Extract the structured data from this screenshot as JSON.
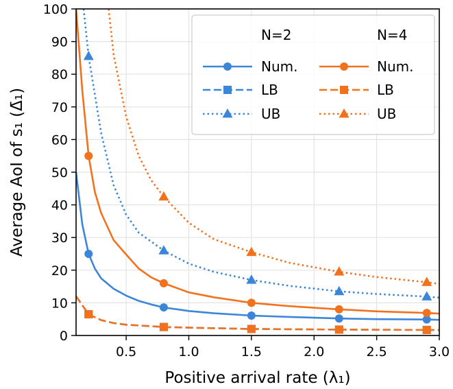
{
  "chart_data": {
    "type": "line",
    "title": "",
    "xlabel": "Positive arrival rate (λ₁)",
    "ylabel": "Average AoI of s₁ (Δ̄₁)",
    "xlim": [
      0.1,
      3.0
    ],
    "ylim": [
      0,
      100
    ],
    "xticks": [
      0.5,
      1.0,
      1.5,
      2.0,
      2.5,
      3.0
    ],
    "xtick_labels": [
      "0.5",
      "1.0",
      "1.5",
      "2.0",
      "2.5",
      "3.0"
    ],
    "yticks": [
      0,
      10,
      20,
      30,
      40,
      50,
      60,
      70,
      80,
      90,
      100
    ],
    "ytick_labels": [
      "0",
      "10",
      "20",
      "30",
      "40",
      "50",
      "60",
      "70",
      "80",
      "90",
      "100"
    ],
    "grid": true,
    "legend": {
      "placement": "top-right",
      "group_titles": [
        "N=2",
        "N=4"
      ],
      "entries": [
        "Num.",
        "LB",
        "UB"
      ]
    },
    "colors": {
      "N=2": "#3b86d9",
      "N=4": "#f2711c"
    },
    "series": [
      {
        "group": "N=2",
        "name": "Num.",
        "style": "solid",
        "marker": "circle",
        "x": [
          0.1,
          0.15,
          0.2,
          0.25,
          0.3,
          0.4,
          0.5,
          0.6,
          0.7,
          0.8,
          1.0,
          1.2,
          1.5,
          1.8,
          2.2,
          2.5,
          2.9,
          3.0
        ],
        "y": [
          50,
          34,
          25,
          20.5,
          17.5,
          14.3,
          12.2,
          10.6,
          9.5,
          8.6,
          7.5,
          6.8,
          6.1,
          5.7,
          5.2,
          5.0,
          4.9,
          4.8
        ],
        "marker_x": [
          0.2,
          0.8,
          1.5,
          2.2,
          2.9
        ],
        "marker_y": [
          25,
          8.6,
          6.1,
          5.2,
          4.9
        ]
      },
      {
        "group": "N=2",
        "name": "LB",
        "style": "dashed",
        "marker": "square",
        "x": [
          0.1,
          0.2,
          0.3,
          0.4,
          0.5,
          0.8,
          1.0,
          1.5,
          2.2,
          2.9,
          3.0
        ],
        "y": [
          12,
          6.5,
          4.7,
          3.8,
          3.3,
          2.6,
          2.4,
          2.0,
          1.8,
          1.7,
          1.7
        ],
        "marker_x": [
          0.2,
          0.8,
          1.5,
          2.2,
          2.9
        ],
        "marker_y": [
          6.5,
          2.6,
          2.0,
          1.8,
          1.7
        ]
      },
      {
        "group": "N=2",
        "name": "UB",
        "style": "dotted",
        "marker": "triangle",
        "x": [
          0.16,
          0.2,
          0.3,
          0.4,
          0.5,
          0.6,
          0.8,
          1.0,
          1.2,
          1.5,
          1.8,
          2.2,
          2.5,
          2.9,
          3.0
        ],
        "y": [
          100,
          85.5,
          62,
          46,
          37,
          31.5,
          26,
          22,
          19.5,
          17,
          15.2,
          13.5,
          12.7,
          11.9,
          11.6
        ],
        "marker_x": [
          0.2,
          0.8,
          1.5,
          2.2,
          2.9
        ],
        "marker_y": [
          85.5,
          26,
          17,
          13.5,
          11.9
        ]
      },
      {
        "group": "N=4",
        "name": "Num.",
        "style": "solid",
        "marker": "circle",
        "x": [
          0.1,
          0.12,
          0.15,
          0.2,
          0.25,
          0.3,
          0.4,
          0.5,
          0.6,
          0.7,
          0.8,
          1.0,
          1.2,
          1.5,
          1.8,
          2.2,
          2.5,
          2.9,
          3.0
        ],
        "y": [
          100,
          90,
          75,
          55,
          44,
          37.5,
          29.2,
          24.8,
          20.5,
          17.8,
          16,
          13.2,
          11.7,
          10,
          9,
          8,
          7.4,
          6.9,
          6.7
        ],
        "marker_x": [
          0.2,
          0.8,
          1.5,
          2.2,
          2.9
        ],
        "marker_y": [
          55,
          16,
          10,
          8,
          6.9
        ]
      },
      {
        "group": "N=4",
        "name": "LB",
        "style": "dashed",
        "marker": "square",
        "x": [
          0.1,
          0.2,
          0.3,
          0.4,
          0.5,
          0.8,
          1.0,
          1.5,
          2.2,
          2.9,
          3.0
        ],
        "y": [
          12,
          6.5,
          4.7,
          3.8,
          3.3,
          2.6,
          2.4,
          2.0,
          1.8,
          1.7,
          1.7
        ],
        "marker_x": [
          0.2,
          0.8,
          1.5,
          2.2,
          2.9
        ],
        "marker_y": [
          6.5,
          2.6,
          2.0,
          1.8,
          1.7
        ]
      },
      {
        "group": "N=4",
        "name": "UB",
        "style": "dotted",
        "marker": "triangle",
        "x": [
          0.36,
          0.4,
          0.5,
          0.6,
          0.7,
          0.8,
          1.0,
          1.2,
          1.5,
          1.8,
          2.2,
          2.5,
          2.9,
          3.0
        ],
        "y": [
          100,
          86,
          67,
          55,
          47.5,
          42.5,
          34.5,
          29.5,
          25.5,
          22.3,
          19.5,
          17.9,
          16.3,
          15.8
        ],
        "marker_x": [
          0.8,
          1.5,
          2.2,
          2.9
        ],
        "marker_y": [
          42.5,
          25.5,
          19.5,
          16.3
        ]
      }
    ]
  }
}
